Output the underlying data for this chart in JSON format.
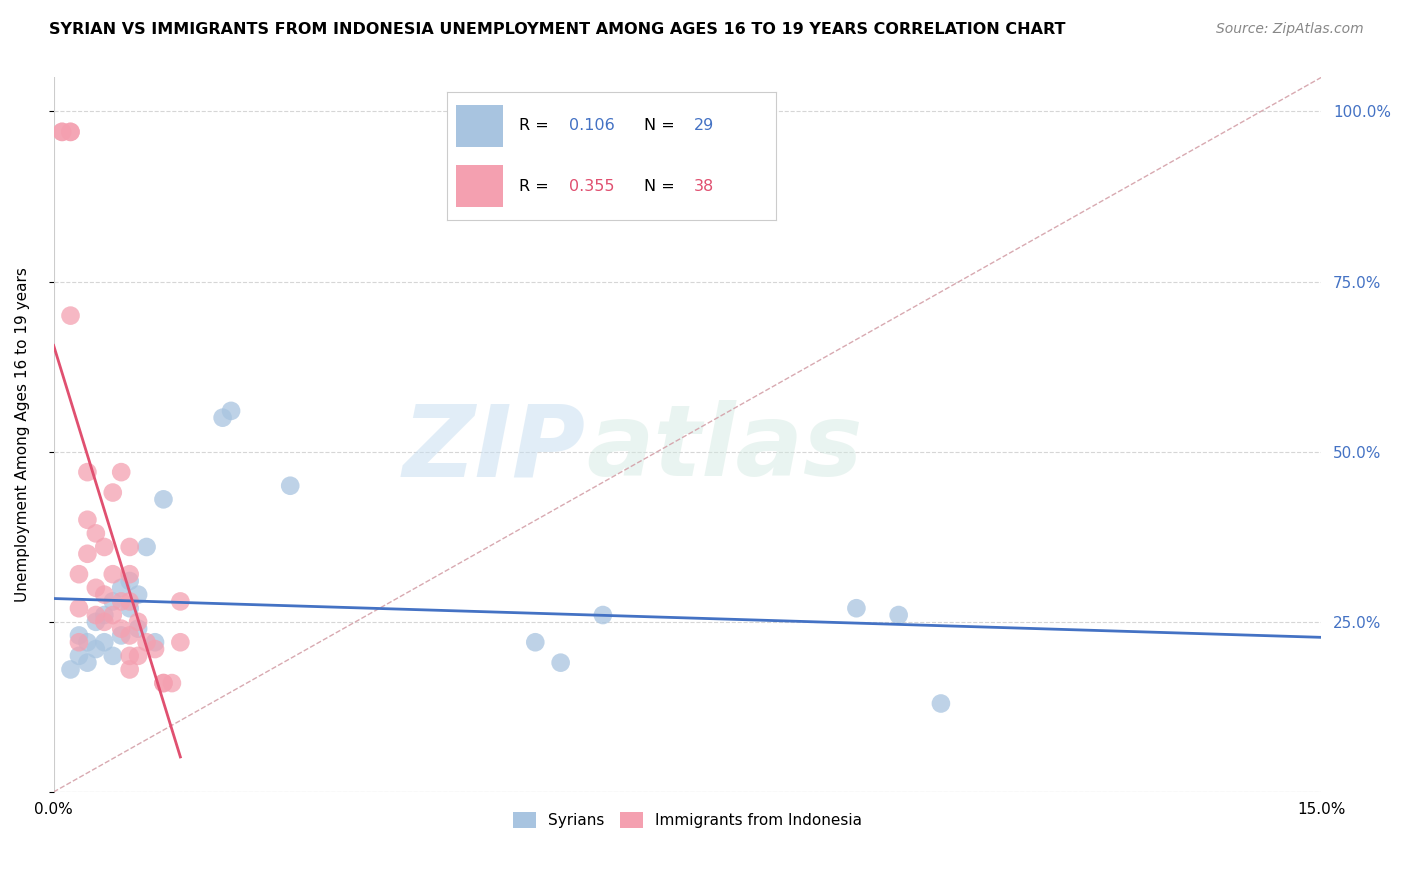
{
  "title": "SYRIAN VS IMMIGRANTS FROM INDONESIA UNEMPLOYMENT AMONG AGES 16 TO 19 YEARS CORRELATION CHART",
  "source": "Source: ZipAtlas.com",
  "ylabel": "Unemployment Among Ages 16 to 19 years",
  "xlim": [
    0.0,
    0.15
  ],
  "ylim": [
    0.0,
    1.05
  ],
  "syrians_R": 0.106,
  "syrians_N": 29,
  "indonesia_R": 0.355,
  "indonesia_N": 38,
  "syrians_color": "#a8c4e0",
  "indonesia_color": "#f4a0b0",
  "trendline_syrians_color": "#4472c4",
  "trendline_indonesia_color": "#e05070",
  "diagonal_color": "#d4a0a8",
  "syrians_x": [
    0.002,
    0.003,
    0.003,
    0.004,
    0.004,
    0.005,
    0.005,
    0.006,
    0.006,
    0.007,
    0.007,
    0.008,
    0.008,
    0.009,
    0.009,
    0.01,
    0.01,
    0.011,
    0.012,
    0.013,
    0.02,
    0.021,
    0.028,
    0.057,
    0.06,
    0.065,
    0.095,
    0.1,
    0.105
  ],
  "syrians_y": [
    0.18,
    0.2,
    0.23,
    0.19,
    0.22,
    0.21,
    0.25,
    0.22,
    0.26,
    0.2,
    0.28,
    0.23,
    0.3,
    0.27,
    0.31,
    0.24,
    0.29,
    0.36,
    0.22,
    0.43,
    0.55,
    0.56,
    0.45,
    0.22,
    0.19,
    0.26,
    0.27,
    0.26,
    0.13
  ],
  "indonesia_x": [
    0.001,
    0.001,
    0.002,
    0.002,
    0.002,
    0.003,
    0.003,
    0.003,
    0.004,
    0.004,
    0.004,
    0.005,
    0.005,
    0.005,
    0.006,
    0.006,
    0.006,
    0.007,
    0.007,
    0.007,
    0.008,
    0.008,
    0.008,
    0.009,
    0.009,
    0.009,
    0.009,
    0.009,
    0.009,
    0.01,
    0.01,
    0.011,
    0.012,
    0.013,
    0.013,
    0.014,
    0.015,
    0.015
  ],
  "indonesia_y": [
    0.97,
    0.97,
    0.97,
    0.97,
    0.7,
    0.22,
    0.27,
    0.32,
    0.35,
    0.4,
    0.47,
    0.26,
    0.3,
    0.38,
    0.25,
    0.29,
    0.36,
    0.26,
    0.32,
    0.44,
    0.24,
    0.28,
    0.47,
    0.2,
    0.23,
    0.28,
    0.32,
    0.36,
    0.18,
    0.2,
    0.25,
    0.22,
    0.21,
    0.16,
    0.16,
    0.16,
    0.22,
    0.28
  ],
  "background_color": "#ffffff",
  "grid_color": "#cccccc",
  "watermark_zip": "ZIP",
  "watermark_atlas": "atlas"
}
